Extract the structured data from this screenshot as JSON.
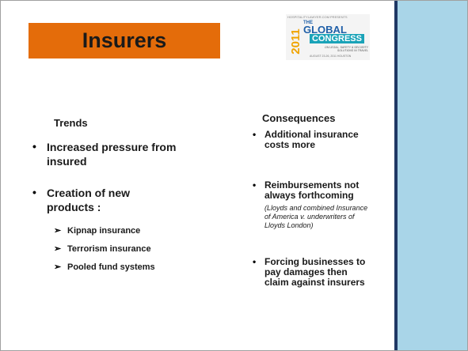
{
  "header": {
    "title": "Insurers"
  },
  "logo": {
    "presents": "HOSPITALITYLAWYER.COM PRESENTS",
    "the": "THE",
    "year": "2011",
    "global": "GLOBAL",
    "congress": "CONGRESS",
    "tagline": "ON LEGAL, SAFETY & SECURITY SOLUTIONS IN TRAVEL",
    "dates": "AUGUST 23-26, 2011 HOUSTON"
  },
  "columns": {
    "left": {
      "heading": "Trends",
      "items": [
        {
          "text": "Increased pressure from insured"
        },
        {
          "text": "Creation of new products :",
          "subitems": [
            "Kipnap insurance",
            "Terrorism insurance",
            "Pooled fund systems"
          ]
        }
      ]
    },
    "right": {
      "heading": "Consequences",
      "items": [
        {
          "text": "Additional insurance costs more"
        },
        {
          "text": "Reimbursements not always forthcoming",
          "note": "(Lloyds and combined Insurance of America v. underwriters of Lloyds London)"
        },
        {
          "text": "Forcing businesses to pay damages then claim against insurers"
        }
      ]
    }
  }
}
